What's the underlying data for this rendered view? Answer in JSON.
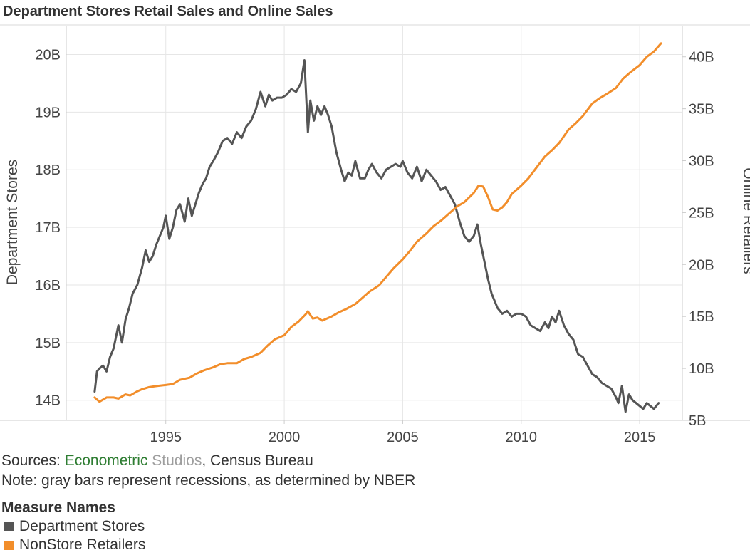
{
  "colors": {
    "dept": "#555555",
    "online": "#f28e2b",
    "grid": "#e6e6e6",
    "axis": "#cccccc"
  },
  "chart_data": {
    "type": "line",
    "title": "Department Stores Retail Sales and Online Sales",
    "xlabel": "",
    "ylabel": "Department Stores",
    "y2label": "Online Retailers",
    "xlim": [
      1990.8,
      2016.8
    ],
    "ylim": [
      13.65,
      20.5
    ],
    "y2lim": [
      5.0,
      43.0
    ],
    "x_ticks": [
      "1995",
      "2000",
      "2005",
      "2010",
      "2015"
    ],
    "x_tick_values": [
      1995,
      2000,
      2005,
      2010,
      2015
    ],
    "y_ticks": [
      "14B",
      "15B",
      "16B",
      "17B",
      "18B",
      "19B",
      "20B"
    ],
    "y_tick_values": [
      14,
      15,
      16,
      17,
      18,
      19,
      20
    ],
    "y2_ticks": [
      "5B",
      "10B",
      "15B",
      "20B",
      "25B",
      "30B",
      "35B",
      "40B"
    ],
    "y2_tick_values": [
      5,
      10,
      15,
      20,
      25,
      30,
      35,
      40
    ],
    "grid": true,
    "legend_title": "Measure Names",
    "series": [
      {
        "name": "Department Stores",
        "axis": "left",
        "x": [
          1992.0,
          1992.1,
          1992.2,
          1992.35,
          1992.5,
          1992.65,
          1992.8,
          1993.0,
          1993.15,
          1993.3,
          1993.45,
          1993.6,
          1993.8,
          1994.0,
          1994.15,
          1994.3,
          1994.45,
          1994.6,
          1994.75,
          1994.9,
          1995.0,
          1995.15,
          1995.3,
          1995.45,
          1995.6,
          1995.8,
          1995.95,
          1996.1,
          1996.25,
          1996.4,
          1996.55,
          1996.7,
          1996.85,
          1997.0,
          1997.2,
          1997.4,
          1997.6,
          1997.8,
          1998.0,
          1998.2,
          1998.4,
          1998.6,
          1998.8,
          1999.0,
          1999.2,
          1999.35,
          1999.5,
          1999.7,
          1999.9,
          2000.1,
          2000.3,
          2000.5,
          2000.7,
          2000.85,
          2001.0,
          2001.1,
          2001.25,
          2001.4,
          2001.55,
          2001.7,
          2001.85,
          2002.0,
          2002.2,
          2002.4,
          2002.55,
          2002.7,
          2002.85,
          2003.0,
          2003.2,
          2003.4,
          2003.55,
          2003.7,
          2003.9,
          2004.1,
          2004.3,
          2004.5,
          2004.7,
          2004.9,
          2005.0,
          2005.2,
          2005.4,
          2005.6,
          2005.8,
          2006.0,
          2006.2,
          2006.4,
          2006.6,
          2006.8,
          2007.0,
          2007.2,
          2007.4,
          2007.6,
          2007.8,
          2008.0,
          2008.15,
          2008.3,
          2008.45,
          2008.6,
          2008.75,
          2008.9,
          2009.0,
          2009.2,
          2009.4,
          2009.6,
          2009.8,
          2010.0,
          2010.2,
          2010.4,
          2010.6,
          2010.8,
          2011.0,
          2011.15,
          2011.3,
          2011.45,
          2011.6,
          2011.8,
          2012.0,
          2012.2,
          2012.4,
          2012.6,
          2012.8,
          2013.0,
          2013.2,
          2013.4,
          2013.6,
          2013.8,
          2014.0,
          2014.1,
          2014.25,
          2014.4,
          2014.55,
          2014.7,
          2014.85,
          2015.0,
          2015.15,
          2015.3,
          2015.45,
          2015.6,
          2015.8
        ],
        "values": [
          14.15,
          14.5,
          14.55,
          14.6,
          14.5,
          14.75,
          14.9,
          15.3,
          15.0,
          15.4,
          15.6,
          15.85,
          16.0,
          16.3,
          16.6,
          16.4,
          16.5,
          16.7,
          16.85,
          17.0,
          17.2,
          16.8,
          17.0,
          17.3,
          17.4,
          17.1,
          17.5,
          17.2,
          17.4,
          17.6,
          17.75,
          17.85,
          18.05,
          18.15,
          18.3,
          18.5,
          18.55,
          18.45,
          18.65,
          18.55,
          18.75,
          18.85,
          19.05,
          19.35,
          19.1,
          19.3,
          19.2,
          19.25,
          19.25,
          19.3,
          19.4,
          19.35,
          19.5,
          19.9,
          18.65,
          19.2,
          18.85,
          19.1,
          18.95,
          19.1,
          18.95,
          18.75,
          18.3,
          18.0,
          17.8,
          17.95,
          17.9,
          18.15,
          17.85,
          17.85,
          18.0,
          18.1,
          17.95,
          17.85,
          18.0,
          18.05,
          18.1,
          18.05,
          18.15,
          17.95,
          17.85,
          18.05,
          17.8,
          18.0,
          17.9,
          17.8,
          17.65,
          17.7,
          17.55,
          17.4,
          17.1,
          16.85,
          16.75,
          16.85,
          17.05,
          16.7,
          16.4,
          16.1,
          15.85,
          15.7,
          15.6,
          15.5,
          15.55,
          15.45,
          15.5,
          15.5,
          15.45,
          15.3,
          15.25,
          15.2,
          15.35,
          15.25,
          15.45,
          15.35,
          15.55,
          15.3,
          15.15,
          15.05,
          14.8,
          14.75,
          14.6,
          14.45,
          14.4,
          14.3,
          14.25,
          14.2,
          14.05,
          13.95,
          14.25,
          13.8,
          14.1,
          14.0,
          13.95,
          13.9,
          13.85,
          13.95,
          13.9,
          13.85,
          13.95
        ]
      },
      {
        "name": "NonStore Retailers",
        "axis": "right",
        "x": [
          1992.0,
          1992.2,
          1992.5,
          1992.8,
          1993.0,
          1993.3,
          1993.5,
          1993.8,
          1994.0,
          1994.3,
          1994.6,
          1995.0,
          1995.3,
          1995.6,
          1996.0,
          1996.3,
          1996.6,
          1997.0,
          1997.3,
          1997.6,
          1998.0,
          1998.3,
          1998.6,
          1999.0,
          1999.3,
          1999.6,
          2000.0,
          2000.3,
          2000.6,
          2000.9,
          2001.0,
          2001.2,
          2001.4,
          2001.6,
          2001.8,
          2002.0,
          2002.3,
          2002.6,
          2003.0,
          2003.3,
          2003.6,
          2004.0,
          2004.3,
          2004.6,
          2005.0,
          2005.3,
          2005.6,
          2006.0,
          2006.3,
          2006.6,
          2007.0,
          2007.3,
          2007.6,
          2008.0,
          2008.2,
          2008.4,
          2008.6,
          2008.8,
          2009.0,
          2009.2,
          2009.4,
          2009.6,
          2010.0,
          2010.3,
          2010.6,
          2011.0,
          2011.3,
          2011.6,
          2012.0,
          2012.3,
          2012.6,
          2013.0,
          2013.3,
          2013.6,
          2014.0,
          2014.3,
          2014.6,
          2015.0,
          2015.3,
          2015.6,
          2015.9
        ],
        "values": [
          7.2,
          6.8,
          7.2,
          7.2,
          7.1,
          7.5,
          7.4,
          7.8,
          8.0,
          8.2,
          8.3,
          8.4,
          8.5,
          8.9,
          9.1,
          9.5,
          9.8,
          10.1,
          10.4,
          10.5,
          10.5,
          10.9,
          11.1,
          11.5,
          12.2,
          12.8,
          13.2,
          14.0,
          14.5,
          15.2,
          15.5,
          14.8,
          14.9,
          14.6,
          14.8,
          15.0,
          15.4,
          15.7,
          16.2,
          16.8,
          17.4,
          18.0,
          18.8,
          19.6,
          20.5,
          21.3,
          22.2,
          23.0,
          23.7,
          24.2,
          25.0,
          25.6,
          26.0,
          26.9,
          27.6,
          27.5,
          26.5,
          25.3,
          25.2,
          25.5,
          26.0,
          26.8,
          27.6,
          28.3,
          29.2,
          30.4,
          31.0,
          31.7,
          33.0,
          33.6,
          34.3,
          35.5,
          36.0,
          36.4,
          37.0,
          37.9,
          38.5,
          39.2,
          40.0,
          40.5,
          41.3
        ]
      }
    ]
  },
  "footer": {
    "sources_prefix": "Sources: ",
    "sources_part1": "Econometric",
    "sources_part2": "Studios",
    "sources_suffix": ", Census Bureau",
    "note": "Note: gray bars represent recessions, as determined by NBER"
  },
  "legend": {
    "title": "Measure Names",
    "items": [
      {
        "label": "Department Stores",
        "color": "#555555"
      },
      {
        "label": "NonStore Retailers",
        "color": "#f28e2b"
      }
    ]
  }
}
